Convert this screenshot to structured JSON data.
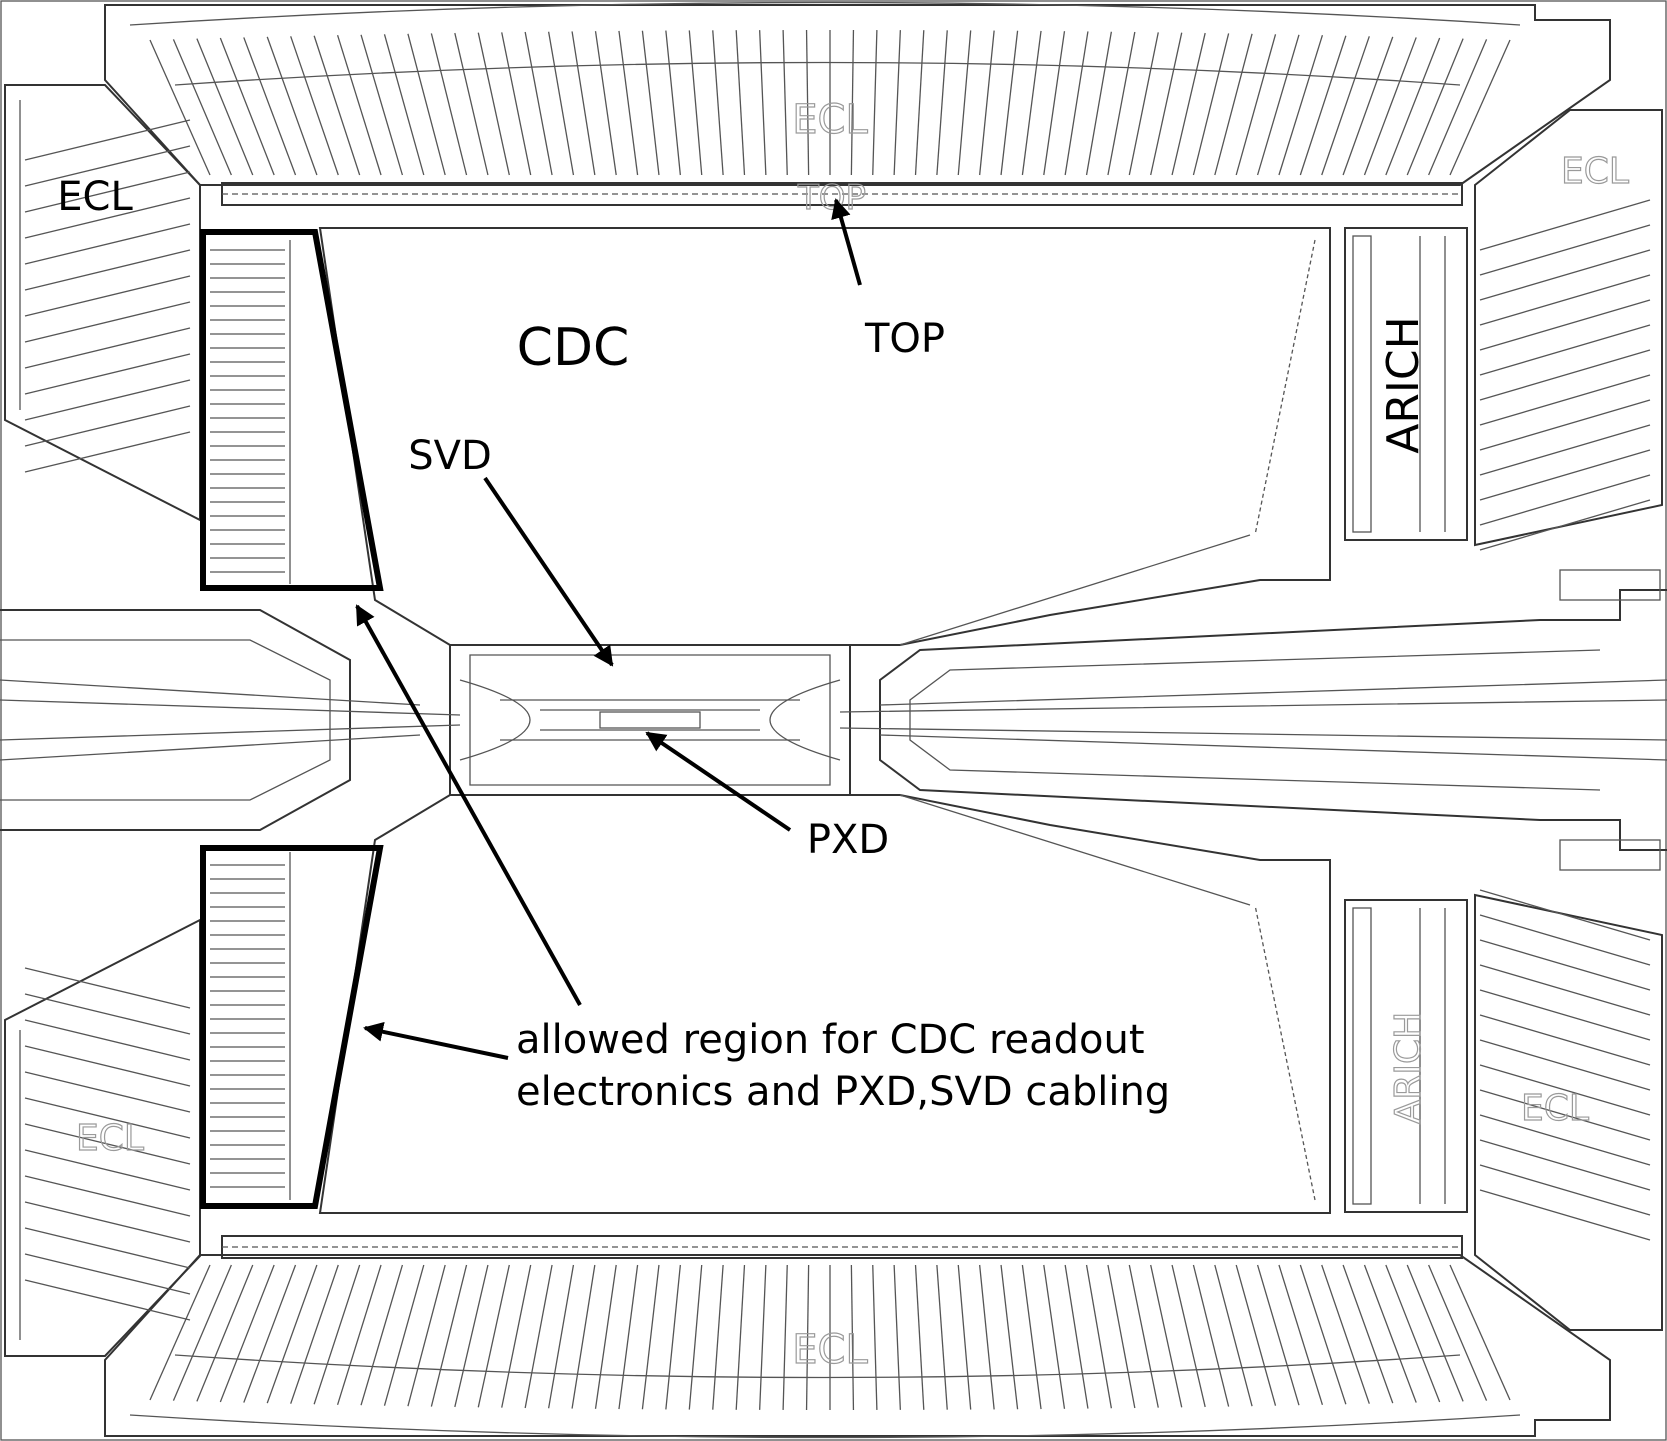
{
  "labels": {
    "ecl_top_left": "ECL",
    "ecl_top_center": "ECL",
    "ecl_top_right": "ECL",
    "ecl_bottom_left": "ECL",
    "ecl_bottom_center": "ECL",
    "ecl_bottom_right": "ECL",
    "top_ghost": "TOP",
    "top": "TOP",
    "cdc": "CDC",
    "svd": "SVD",
    "pxd": "PXD",
    "arich_top": "ARICH",
    "arich_bottom": "ARICH",
    "note_line1": "allowed region for CDC readout",
    "note_line2": "electronics and PXD,SVD cabling"
  },
  "colors": {
    "ink": "#000000",
    "line": "#555555",
    "ghost_text": "#9a9a9a",
    "background": "#ffffff"
  }
}
